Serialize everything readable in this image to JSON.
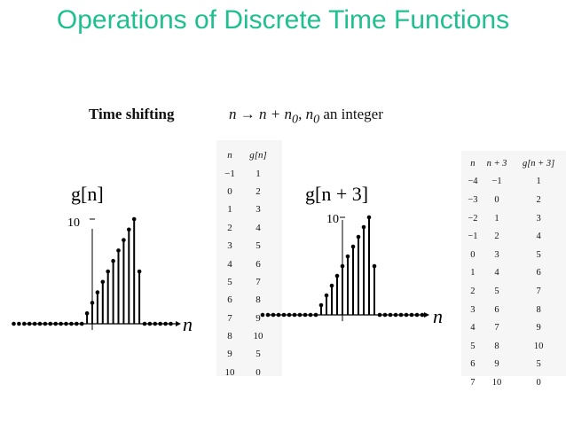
{
  "slide": {
    "title": "Operations of Discrete Time Functions",
    "shift_label": "Time shifting",
    "shift_formula": "n → n + n",
    "shift_formula_sub": "0",
    "shift_formula_sep": ", n",
    "shift_formula_sub2": "0",
    "shift_note": " an integer"
  },
  "table1": {
    "headers": [
      "n",
      "g[n]"
    ],
    "rows": [
      [
        "−1",
        "1"
      ],
      [
        "0",
        "2"
      ],
      [
        "1",
        "3"
      ],
      [
        "2",
        "4"
      ],
      [
        "3",
        "5"
      ],
      [
        "4",
        "6"
      ],
      [
        "5",
        "7"
      ],
      [
        "6",
        "8"
      ],
      [
        "7",
        "9"
      ],
      [
        "8",
        "10"
      ],
      [
        "9",
        "5"
      ],
      [
        "10",
        "0"
      ]
    ]
  },
  "table2": {
    "headers": [
      "n",
      "n + 3",
      "g[n + 3]"
    ],
    "rows": [
      [
        "−4",
        "−1",
        "1"
      ],
      [
        "−3",
        "0",
        "2"
      ],
      [
        "−2",
        "1",
        "3"
      ],
      [
        "−1",
        "2",
        "4"
      ],
      [
        "0",
        "3",
        "5"
      ],
      [
        "1",
        "4",
        "6"
      ],
      [
        "2",
        "5",
        "7"
      ],
      [
        "3",
        "6",
        "8"
      ],
      [
        "4",
        "7",
        "9"
      ],
      [
        "5",
        "8",
        "10"
      ],
      [
        "6",
        "9",
        "5"
      ],
      [
        "7",
        "10",
        "0"
      ]
    ]
  },
  "chart_data": [
    {
      "type": "scatter",
      "title": "g[n]",
      "xlabel": "n",
      "ytick_label": "10",
      "x": [
        -15,
        -14,
        -13,
        -12,
        -11,
        -10,
        -9,
        -8,
        -7,
        -6,
        -5,
        -4,
        -3,
        -2,
        -1,
        0,
        1,
        2,
        3,
        4,
        5,
        6,
        7,
        8,
        9,
        10,
        11,
        12,
        13,
        14,
        15
      ],
      "y": [
        0,
        0,
        0,
        0,
        0,
        0,
        0,
        0,
        0,
        0,
        0,
        0,
        0,
        0,
        1,
        2,
        3,
        4,
        5,
        6,
        7,
        8,
        9,
        10,
        5,
        0,
        0,
        0,
        0,
        0,
        0
      ]
    },
    {
      "type": "scatter",
      "title": "g[n + 3]",
      "xlabel": "n",
      "ytick_label": "10",
      "x": [
        -15,
        -14,
        -13,
        -12,
        -11,
        -10,
        -9,
        -8,
        -7,
        -6,
        -5,
        -4,
        -3,
        -2,
        -1,
        0,
        1,
        2,
        3,
        4,
        5,
        6,
        7,
        8,
        9,
        10,
        11,
        12,
        13,
        14,
        15
      ],
      "y": [
        0,
        0,
        0,
        0,
        0,
        0,
        0,
        0,
        0,
        0,
        0,
        1,
        2,
        3,
        4,
        5,
        6,
        7,
        8,
        9,
        10,
        5,
        0,
        0,
        0,
        0,
        0,
        0,
        0,
        0,
        0
      ]
    }
  ]
}
